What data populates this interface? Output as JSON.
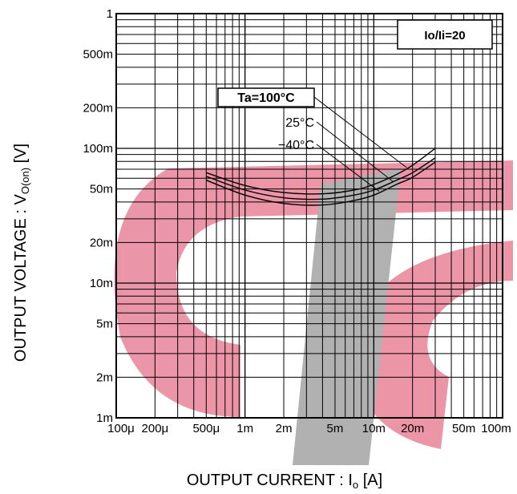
{
  "chart_data": {
    "type": "line",
    "xscale": "log",
    "yscale": "log",
    "xlim": [
      0.0001,
      0.1
    ],
    "ylim": [
      0.001,
      1
    ],
    "grid": true,
    "xlabel": {
      "main": "OUTPUT CURRENT : I",
      "sub": "o",
      "unit": " [A]"
    },
    "ylabel": {
      "main": "OUTPUT VOLTAGE : V",
      "sub": "O(on)",
      "unit": " [V]"
    },
    "x_ticks": [
      {
        "value": 0.0001,
        "label": "100μ"
      },
      {
        "value": 0.0002,
        "label": "200μ"
      },
      {
        "value": 0.0005,
        "label": "500μ"
      },
      {
        "value": 0.001,
        "label": "1m"
      },
      {
        "value": 0.002,
        "label": "2m"
      },
      {
        "value": 0.005,
        "label": "5m"
      },
      {
        "value": 0.01,
        "label": "10m"
      },
      {
        "value": 0.02,
        "label": "20m"
      },
      {
        "value": 0.05,
        "label": "50m"
      },
      {
        "value": 0.1,
        "label": "100m"
      }
    ],
    "y_ticks": [
      {
        "value": 1,
        "label": "1"
      },
      {
        "value": 0.5,
        "label": "500m"
      },
      {
        "value": 0.2,
        "label": "200m"
      },
      {
        "value": 0.1,
        "label": "100m"
      },
      {
        "value": 0.05,
        "label": "50m"
      },
      {
        "value": 0.02,
        "label": "20m"
      },
      {
        "value": 0.01,
        "label": "10m"
      },
      {
        "value": 0.005,
        "label": "5m"
      },
      {
        "value": 0.002,
        "label": "2m"
      },
      {
        "value": 0.001,
        "label": "1m"
      }
    ],
    "condition_box": "Io/Ii=20",
    "series": [
      {
        "name": "Ta=100°C",
        "x": [
          0.0005,
          0.001,
          0.002,
          0.004,
          0.007,
          0.01,
          0.015,
          0.02,
          0.03
        ],
        "y": [
          0.066,
          0.053,
          0.047,
          0.046,
          0.049,
          0.054,
          0.064,
          0.075,
          0.1
        ]
      },
      {
        "name": "25°C",
        "x": [
          0.0005,
          0.001,
          0.002,
          0.004,
          0.007,
          0.01,
          0.015,
          0.02,
          0.03
        ],
        "y": [
          0.062,
          0.049,
          0.043,
          0.042,
          0.045,
          0.049,
          0.058,
          0.066,
          0.085
        ]
      },
      {
        "name": "−40°C",
        "x": [
          0.0005,
          0.001,
          0.002,
          0.004,
          0.007,
          0.01,
          0.015,
          0.02,
          0.03
        ],
        "y": [
          0.058,
          0.045,
          0.039,
          0.038,
          0.041,
          0.045,
          0.054,
          0.061,
          0.079
        ]
      }
    ]
  }
}
